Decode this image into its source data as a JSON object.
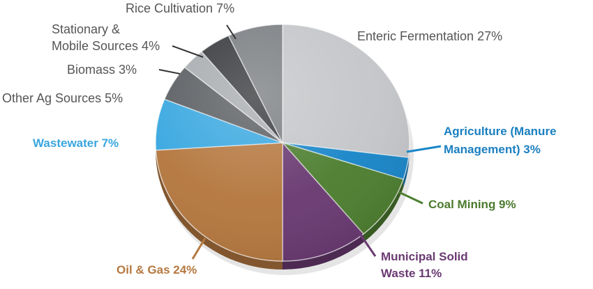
{
  "chart_data": {
    "type": "pie",
    "title": "",
    "slices": [
      {
        "label_lines": [
          "Enteric Fermentation 27%"
        ],
        "value": 27,
        "color": "#c4c6c9",
        "text_color": "#555555",
        "bold": false
      },
      {
        "label_lines": [
          "Agriculture (Manure",
          "Management) 3%"
        ],
        "value": 3,
        "color": "#1a86c8",
        "text_color": "#1a7fc1",
        "bold": true
      },
      {
        "label_lines": [
          "Coal Mining 9%"
        ],
        "value": 9,
        "color": "#4e7f31",
        "text_color": "#4b7a2e",
        "bold": true
      },
      {
        "label_lines": [
          "Municipal Solid",
          "Waste 11%"
        ],
        "value": 11,
        "color": "#6a3a72",
        "text_color": "#6a3a72",
        "bold": true
      },
      {
        "label_lines": [
          "Oil & Gas 24%"
        ],
        "value": 24,
        "color": "#b57840",
        "text_color": "#b57840",
        "bold": true
      },
      {
        "label_lines": [
          "Wastewater 7%"
        ],
        "value": 7,
        "color": "#3aa8e0",
        "text_color": "#39a6df",
        "bold": true
      },
      {
        "label_lines": [
          "Other Ag Sources 5%"
        ],
        "value": 5,
        "color": "#5b5e62",
        "text_color": "#555555",
        "bold": false
      },
      {
        "label_lines": [
          "Biomass 3%"
        ],
        "value": 3,
        "color": "#a9acb0",
        "text_color": "#555555",
        "bold": false
      },
      {
        "label_lines": [
          "Stationary &",
          "Mobile Sources 4%"
        ],
        "value": 4,
        "color": "#37393c",
        "text_color": "#555555",
        "bold": false
      },
      {
        "label_lines": [
          "Rice Cultivation 7%"
        ],
        "value": 7,
        "color": "#7b7e82",
        "text_color": "#555555",
        "bold": false
      }
    ],
    "legend": "none",
    "start": "12 o'clock, clockwise"
  }
}
